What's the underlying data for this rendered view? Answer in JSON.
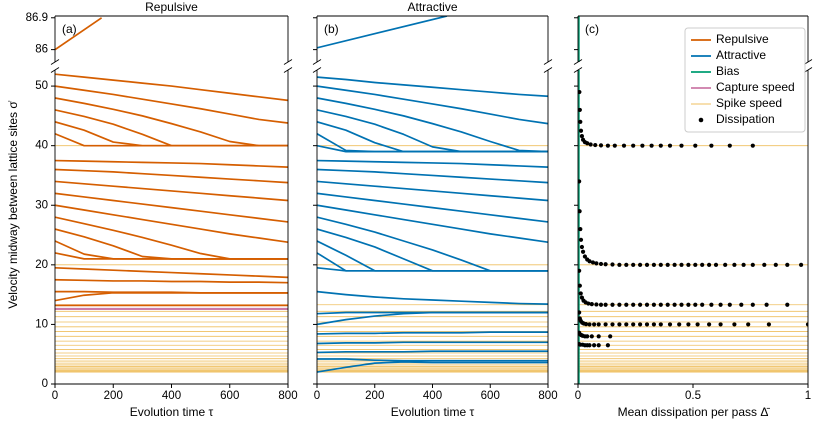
{
  "chart_data": [
    {
      "type": "line",
      "title": "Repulsive",
      "panel_label": "(a)",
      "x_label": "Evolution time τ",
      "y_label": "Velocity midway between lattice sites σ̇",
      "x": [
        0,
        100,
        200,
        300,
        400,
        500,
        600,
        700,
        800
      ],
      "xlim": [
        0,
        800
      ],
      "xticks": [
        0,
        200,
        400,
        600,
        800
      ],
      "ylim": [
        0,
        52.7
      ],
      "yticks": [
        0,
        10,
        20,
        30,
        40,
        50
      ],
      "ylim_top": [
        85.65,
        86.95
      ],
      "yticks_top": [
        86,
        86.9
      ],
      "ytick_labels": true,
      "series": [
        {
          "name": "Repulsive",
          "color": "#d55e00",
          "top_x": [
            0,
            160
          ],
          "top_values": [
            86,
            86.9
          ],
          "lines": [
            [
              52,
              51.5,
              51,
              50.5,
              50,
              49.4,
              48.8,
              48.2,
              47.6
            ],
            [
              50,
              49.3,
              48.6,
              47.8,
              47,
              46.2,
              45.3,
              44.4,
              43.8
            ],
            [
              48,
              47.1,
              46.1,
              45,
              43.7,
              42.3,
              40.7,
              40,
              40
            ],
            [
              46,
              44.9,
              43.6,
              41.9,
              40,
              40,
              40,
              40,
              40
            ],
            [
              44,
              42.6,
              40.6,
              40,
              40,
              40,
              40,
              40,
              40
            ],
            [
              42,
              40,
              40,
              40,
              40,
              40,
              40,
              40,
              40
            ],
            [
              37.5,
              37.4,
              37.3,
              37.2,
              37.1,
              37,
              36.8,
              36.6,
              36.4
            ],
            [
              36,
              35.8,
              35.6,
              35.3,
              35,
              34.7,
              34.4,
              34.1,
              33.8
            ],
            [
              34,
              33.6,
              33.2,
              32.8,
              32.4,
              32,
              31.6,
              31.2,
              30.8
            ],
            [
              32,
              31.4,
              30.8,
              30.2,
              29.6,
              29,
              28.4,
              27.8,
              27.2
            ],
            [
              30,
              29.2,
              28.4,
              27.6,
              26.8,
              26,
              25.2,
              24.5,
              23.8
            ],
            [
              28,
              26.9,
              25.8,
              24.6,
              23.3,
              21.9,
              21,
              21,
              21
            ],
            [
              26,
              24.7,
              23.2,
              21.4,
              21,
              21,
              21,
              21,
              21
            ],
            [
              24,
              21.8,
              21,
              21,
              21,
              21,
              21,
              21,
              21
            ],
            [
              22,
              21,
              21,
              21,
              21,
              21,
              21,
              21,
              21
            ],
            [
              19.5,
              19.3,
              19.1,
              18.9,
              18.7,
              18.5,
              18.3,
              18.1,
              17.9
            ],
            [
              17.5,
              17.4,
              17.3,
              17.3,
              17.2,
              17.2,
              17.1,
              17.1,
              17
            ],
            [
              15.5,
              15.5,
              15.4,
              15.4,
              15.4,
              15.3,
              15.3,
              15.3,
              15.3
            ],
            [
              14,
              14.9,
              15.3,
              15.3,
              15.3,
              15.3,
              15.3,
              15.3,
              15.3
            ],
            [
              13.2,
              13.2,
              13.2,
              13.2,
              13.2,
              13.2,
              13.2,
              13.2,
              13.2
            ]
          ]
        },
        {
          "name": "Capture speed",
          "color": "#cc79a7",
          "hlines": [
            12.6
          ]
        }
      ]
    },
    {
      "type": "line",
      "title": "Attractive",
      "panel_label": "(b)",
      "x_label": "Evolution time τ",
      "x": [
        0,
        100,
        200,
        300,
        400,
        500,
        600,
        700,
        800
      ],
      "xlim": [
        0,
        800
      ],
      "xticks": [
        0,
        200,
        400,
        600,
        800
      ],
      "ylim": [
        0,
        52.7
      ],
      "yticks": [
        0,
        10,
        20,
        30,
        40,
        50
      ],
      "ylim_top": [
        85.65,
        86.95
      ],
      "yticks_top": [
        86,
        86.9
      ],
      "ytick_labels": false,
      "series": [
        {
          "name": "Attractive",
          "color": "#0072b2",
          "top_x": [
            0,
            450
          ],
          "top_values": [
            86.05,
            86.95
          ],
          "lines": [
            [
              51.5,
              51.1,
              50.6,
              50.2,
              49.8,
              49.4,
              49,
              48.6,
              48.3
            ],
            [
              50,
              49.3,
              48.6,
              47.8,
              47,
              46.2,
              45.3,
              44.4,
              43.7
            ],
            [
              48,
              47.1,
              46.1,
              45,
              43.7,
              42.3,
              40.7,
              39.2,
              39
            ],
            [
              46,
              44.9,
              43.6,
              41.9,
              39.8,
              39,
              39,
              39,
              39
            ],
            [
              44,
              42.6,
              40.5,
              39,
              39,
              39,
              39,
              39,
              39
            ],
            [
              42,
              39.2,
              39,
              39,
              39,
              39,
              39,
              39,
              39
            ],
            [
              40,
              39,
              39,
              39,
              39,
              39,
              39,
              39,
              39
            ],
            [
              37.5,
              37.4,
              37.3,
              37.2,
              37.1,
              37,
              36.8,
              36.6,
              36.4
            ],
            [
              36,
              35.8,
              35.6,
              35.3,
              35,
              34.7,
              34.4,
              34.1,
              33.8
            ],
            [
              34,
              33.6,
              33.2,
              32.8,
              32.4,
              32,
              31.6,
              31.2,
              30.8
            ],
            [
              32,
              31.4,
              30.8,
              30.2,
              29.6,
              29,
              28.4,
              27.8,
              27.2
            ],
            [
              30,
              29.2,
              28.4,
              27.6,
              26.8,
              26,
              25.2,
              24.5,
              23.8
            ],
            [
              28,
              26.8,
              25.5,
              24,
              22.5,
              20.8,
              19,
              19,
              19
            ],
            [
              26,
              24.6,
              23,
              21,
              19,
              19,
              19,
              19,
              19
            ],
            [
              24,
              21.6,
              19,
              19,
              19,
              19,
              19,
              19,
              19
            ],
            [
              22,
              19,
              19,
              19,
              19,
              19,
              19,
              19,
              19
            ],
            [
              19.5,
              19,
              19,
              19,
              19,
              19,
              19,
              19,
              19
            ],
            [
              15.5,
              15,
              14.6,
              14.3,
              14.1,
              13.9,
              13.7,
              13.5,
              13.4
            ],
            [
              11.8,
              12,
              12,
              12,
              12,
              12,
              12,
              12,
              12
            ],
            [
              10,
              10.8,
              11.4,
              11.8,
              12,
              12,
              12,
              12,
              12
            ],
            [
              8.4,
              8.5,
              8.5,
              8.6,
              8.6,
              8.6,
              8.7,
              8.7,
              8.7
            ],
            [
              6.8,
              6.9,
              6.9,
              7,
              7,
              7,
              7,
              7,
              7
            ],
            [
              5.3,
              5.4,
              5.4,
              5.4,
              5.5,
              5.5,
              5.5,
              5.5,
              5.5
            ],
            [
              4.2,
              4.2,
              4,
              3.9,
              3.9,
              3.9,
              3.9,
              3.9,
              3.9
            ],
            [
              2,
              2.8,
              3.5,
              3.7,
              3.6,
              3.6,
              3.6,
              3.6,
              3.6
            ]
          ]
        }
      ]
    },
    {
      "type": "scatter",
      "panel_label": "(c)",
      "x_label": "Mean dissipation per pass Δ̄",
      "xlim": [
        0,
        1
      ],
      "xticks": [
        0,
        0.5,
        1
      ],
      "ylim": [
        0,
        52.7
      ],
      "yticks": [
        0,
        10,
        20,
        30,
        40,
        50
      ],
      "ylim_top": [
        85.65,
        86.95
      ],
      "yticks_top": [
        86,
        86.9
      ],
      "ytick_labels": false,
      "legend": "upper right",
      "series": [
        {
          "name": "Bias",
          "color": "#009e73",
          "xline": 0.004
        },
        {
          "name": "Spike speed",
          "color": "#efbf5f",
          "all_panels": true,
          "hlines": [
            2,
            2.15,
            2.3,
            2.5,
            2.7,
            2.95,
            3.2,
            3.5,
            3.85,
            4.25,
            4.7,
            5.2,
            5.8,
            6.5,
            7.2,
            8,
            8.8,
            9.6,
            10.4,
            11.3,
            12.2,
            13.3,
            20,
            40
          ]
        },
        {
          "name": "Dissipation",
          "color": "#000000",
          "x": [
            0.006,
            0.008,
            0.01,
            0.013,
            0.017,
            0.022,
            0.03,
            0.04,
            0.055,
            0.075,
            0.1,
            0.13,
            0.16,
            0.2,
            0.24,
            0.28,
            0.32,
            0.36,
            0.4,
            0.45,
            0.51,
            0.58,
            0.66,
            0.76,
            0.005,
            0.007,
            0.01,
            0.013,
            0.017,
            0.022,
            0.03,
            0.04,
            0.05,
            0.065,
            0.08,
            0.1,
            0.12,
            0.15,
            0.18,
            0.21,
            0.24,
            0.27,
            0.3,
            0.33,
            0.36,
            0.39,
            0.42,
            0.45,
            0.48,
            0.51,
            0.54,
            0.57,
            0.6,
            0.64,
            0.68,
            0.72,
            0.76,
            0.81,
            0.86,
            0.91,
            0.97,
            0.005,
            0.008,
            0.012,
            0.017,
            0.024,
            0.033,
            0.045,
            0.06,
            0.08,
            0.1,
            0.12,
            0.15,
            0.18,
            0.21,
            0.24,
            0.27,
            0.3,
            0.33,
            0.36,
            0.39,
            0.42,
            0.45,
            0.48,
            0.51,
            0.54,
            0.58,
            0.62,
            0.66,
            0.71,
            0.76,
            0.82,
            0.91,
            0.005,
            0.008,
            0.012,
            0.018,
            0.025,
            0.035,
            0.05,
            0.07,
            0.09,
            0.12,
            0.15,
            0.18,
            0.21,
            0.24,
            0.27,
            0.3,
            0.33,
            0.36,
            0.4,
            0.44,
            0.48,
            0.52,
            0.57,
            0.62,
            0.68,
            0.74,
            0.83,
            1.0,
            0.005,
            0.01,
            0.015,
            0.02,
            0.03,
            0.04,
            0.06,
            0.09,
            0.14,
            0.005,
            0.01,
            0.02,
            0.03,
            0.04,
            0.05,
            0.07,
            0.09,
            0.13
          ],
          "values": [
            49,
            46,
            44,
            42.5,
            41.6,
            41,
            40.6,
            40.4,
            40.2,
            40.1,
            40.05,
            40,
            40,
            40,
            40,
            40,
            40,
            40,
            40,
            40,
            40,
            40,
            40,
            40,
            34,
            29,
            26,
            24.2,
            23,
            22.2,
            21.4,
            20.9,
            20.6,
            20.4,
            20.25,
            20.15,
            20.1,
            20.05,
            20,
            20,
            20,
            20,
            20,
            20,
            20,
            20,
            20,
            20,
            20,
            20,
            20,
            20,
            20,
            20,
            20,
            20,
            20,
            20,
            20,
            20,
            20,
            19,
            16.5,
            15.2,
            14.5,
            14,
            13.7,
            13.5,
            13.4,
            13.35,
            13.3,
            13.3,
            13.3,
            13.3,
            13.3,
            13.3,
            13.3,
            13.3,
            13.3,
            13.3,
            13.3,
            13.3,
            13.3,
            13.3,
            13.3,
            13.3,
            13.3,
            13.3,
            13.3,
            13.3,
            13.3,
            13.3,
            13.3,
            12,
            11,
            10.6,
            10.3,
            10.15,
            10.05,
            10,
            10,
            10,
            10,
            10,
            10,
            10,
            10,
            10,
            10,
            10,
            10,
            10,
            10,
            10,
            10,
            10,
            10,
            10,
            10,
            10,
            10,
            8.6,
            8.3,
            8.2,
            8.1,
            8,
            8,
            8,
            8,
            8,
            6.7,
            6.6,
            6.6,
            6.5,
            6.5,
            6.5,
            6.5,
            6.5,
            6.5
          ]
        }
      ]
    }
  ]
}
